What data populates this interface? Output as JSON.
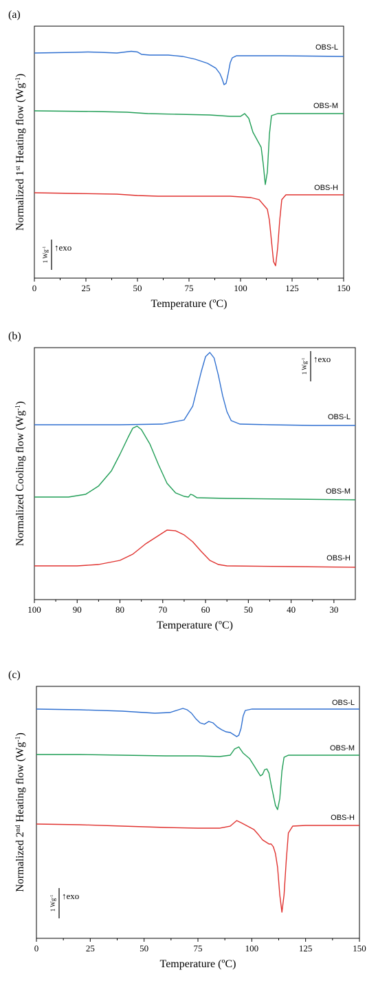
{
  "colors": {
    "OBS-L": "#2e6fd0",
    "OBS-M": "#1f9d55",
    "OBS-H": "#e0312e",
    "axis": "#000000"
  },
  "chart_data": [
    {
      "panel_label": "(a)",
      "type": "line",
      "xlabel": "Temperature (ºC)",
      "ylabel": {
        "before": "Normalized 1",
        "sup": "st",
        "after": " Heating flow (Wg",
        "unit_sup": "-1",
        "close": ")"
      },
      "xlim": [
        0,
        150
      ],
      "xticks": [
        0,
        25,
        50,
        75,
        100,
        125,
        150
      ],
      "x_reversed": false,
      "scale_bar": {
        "label": "1 Wg",
        "label_sup": "-1",
        "arrow_text": "↑exo"
      },
      "series": [
        {
          "name": "OBS-L",
          "points": [
            [
              0,
              77
            ],
            [
              10,
              76.5
            ],
            [
              20,
              76
            ],
            [
              26,
              75.5
            ],
            [
              32,
              76
            ],
            [
              40,
              77
            ],
            [
              47,
              74.5
            ],
            [
              50,
              75.5
            ],
            [
              52,
              79
            ],
            [
              56,
              80
            ],
            [
              65,
              80
            ],
            [
              72,
              82
            ],
            [
              78,
              86
            ],
            [
              84,
              92
            ],
            [
              88,
              99
            ],
            [
              90,
              107
            ],
            [
              91,
              114
            ],
            [
              92,
              123
            ],
            [
              93,
              121
            ],
            [
              94,
              107
            ],
            [
              95,
              91
            ],
            [
              96,
              84
            ],
            [
              98,
              81
            ],
            [
              105,
              81
            ],
            [
              120,
              81
            ],
            [
              135,
              81.5
            ],
            [
              150,
              82
            ]
          ]
        },
        {
          "name": "OBS-M",
          "points": [
            [
              0,
              161
            ],
            [
              15,
              161.5
            ],
            [
              30,
              162
            ],
            [
              45,
              163
            ],
            [
              55,
              165
            ],
            [
              70,
              166
            ],
            [
              85,
              167
            ],
            [
              95,
              169
            ],
            [
              100,
              169
            ],
            [
              102,
              165
            ],
            [
              104,
              172
            ],
            [
              106,
              192
            ],
            [
              108,
              203
            ],
            [
              110,
              214
            ],
            [
              111,
              238
            ],
            [
              112,
              268
            ],
            [
              113,
              250
            ],
            [
              114,
              195
            ],
            [
              115,
              168
            ],
            [
              118,
              165
            ],
            [
              130,
              165
            ],
            [
              150,
              165
            ]
          ]
        },
        {
          "name": "OBS-H",
          "points": [
            [
              0,
              280
            ],
            [
              20,
              281
            ],
            [
              40,
              282
            ],
            [
              50,
              284
            ],
            [
              60,
              285
            ],
            [
              80,
              285
            ],
            [
              95,
              285
            ],
            [
              105,
              287
            ],
            [
              109,
              290
            ],
            [
              111,
              297
            ],
            [
              113,
              304
            ],
            [
              114,
              320
            ],
            [
              115,
              350
            ],
            [
              116,
              380
            ],
            [
              117,
              386
            ],
            [
              118,
              360
            ],
            [
              119,
              320
            ],
            [
              120,
              290
            ],
            [
              122,
              283
            ],
            [
              130,
              283
            ],
            [
              150,
              283
            ]
          ]
        }
      ]
    },
    {
      "panel_label": "(b)",
      "type": "line",
      "xlabel": "Temperature (ºC)",
      "ylabel": {
        "before": "Normalized Cooling flow (Wg",
        "sup": "",
        "after": "",
        "unit_sup": "-1",
        "close": ")"
      },
      "xlim": [
        100,
        25
      ],
      "xticks": [
        100,
        90,
        80,
        70,
        60,
        50,
        40,
        30
      ],
      "x_reversed": true,
      "scale_bar": {
        "label": "1 Wg",
        "label_sup": "-1",
        "arrow_text": "↑exo"
      },
      "series": [
        {
          "name": "OBS-L",
          "points": [
            [
              100,
              617
            ],
            [
              80,
              617
            ],
            [
              70,
              616
            ],
            [
              65,
              610
            ],
            [
              63,
              590
            ],
            [
              62,
              565
            ],
            [
              61,
              540
            ],
            [
              60,
              518
            ],
            [
              59,
              512
            ],
            [
              58,
              520
            ],
            [
              57,
              545
            ],
            [
              56,
              575
            ],
            [
              55,
              598
            ],
            [
              54,
              611
            ],
            [
              52,
              616
            ],
            [
              45,
              617
            ],
            [
              35,
              618
            ],
            [
              25,
              618
            ]
          ]
        },
        {
          "name": "OBS-M",
          "points": [
            [
              100,
              722
            ],
            [
              92,
              722
            ],
            [
              88,
              718
            ],
            [
              85,
              706
            ],
            [
              82,
              684
            ],
            [
              80,
              660
            ],
            [
              78,
              634
            ],
            [
              77,
              622
            ],
            [
              76,
              619
            ],
            [
              75,
              624
            ],
            [
              73,
              645
            ],
            [
              71,
              675
            ],
            [
              69,
              702
            ],
            [
              67,
              716
            ],
            [
              65,
              721
            ],
            [
              64,
              722
            ],
            [
              63.5,
              718
            ],
            [
              63,
              719
            ],
            [
              62,
              723
            ],
            [
              55,
              724
            ],
            [
              40,
              725
            ],
            [
              25,
              726
            ]
          ]
        },
        {
          "name": "OBS-H",
          "points": [
            [
              100,
              822
            ],
            [
              90,
              822
            ],
            [
              85,
              820
            ],
            [
              80,
              814
            ],
            [
              77,
              805
            ],
            [
              74,
              790
            ],
            [
              71,
              778
            ],
            [
              69,
              770
            ],
            [
              67,
              771
            ],
            [
              65,
              777
            ],
            [
              63,
              787
            ],
            [
              61,
              801
            ],
            [
              59,
              814
            ],
            [
              57,
              820
            ],
            [
              55,
              822
            ],
            [
              40,
              823
            ],
            [
              25,
              824
            ]
          ]
        }
      ]
    },
    {
      "panel_label": "(c)",
      "type": "line",
      "xlabel": "Temperature (ºC)",
      "ylabel": {
        "before": "Normalized 2",
        "sup": "nd",
        "after": " Heating flow (Wg",
        "unit_sup": "-1",
        "close": ")"
      },
      "xlim": [
        0,
        150
      ],
      "xticks": [
        0,
        25,
        50,
        75,
        100,
        125,
        150
      ],
      "x_reversed": false,
      "scale_bar": {
        "label": "1 Wg",
        "label_sup": "-1",
        "arrow_text": "↑exo"
      },
      "series": [
        {
          "name": "OBS-L",
          "points": [
            [
              0,
              1030
            ],
            [
              20,
              1031
            ],
            [
              40,
              1033
            ],
            [
              55,
              1036
            ],
            [
              62,
              1035
            ],
            [
              65,
              1032
            ],
            [
              68,
              1029
            ],
            [
              70,
              1031
            ],
            [
              72,
              1036
            ],
            [
              74,
              1044
            ],
            [
              76,
              1050
            ],
            [
              78,
              1052
            ],
            [
              80,
              1048
            ],
            [
              82,
              1050
            ],
            [
              84,
              1056
            ],
            [
              86,
              1060
            ],
            [
              88,
              1063
            ],
            [
              90,
              1064
            ],
            [
              92,
              1068
            ],
            [
              93,
              1070
            ],
            [
              94,
              1068
            ],
            [
              95,
              1058
            ],
            [
              96,
              1040
            ],
            [
              97,
              1032
            ],
            [
              100,
              1030
            ],
            [
              120,
              1030
            ],
            [
              150,
              1030
            ]
          ]
        },
        {
          "name": "OBS-M",
          "points": [
            [
              0,
              1096
            ],
            [
              20,
              1096
            ],
            [
              40,
              1097
            ],
            [
              60,
              1098
            ],
            [
              75,
              1098
            ],
            [
              85,
              1099
            ],
            [
              90,
              1097
            ],
            [
              92,
              1088
            ],
            [
              94,
              1085
            ],
            [
              96,
              1094
            ],
            [
              99,
              1102
            ],
            [
              101,
              1112
            ],
            [
              103,
              1122
            ],
            [
              104,
              1127
            ],
            [
              105,
              1125
            ],
            [
              106,
              1118
            ],
            [
              107,
              1117
            ],
            [
              108,
              1123
            ],
            [
              109,
              1140
            ],
            [
              110,
              1155
            ],
            [
              111,
              1170
            ],
            [
              112,
              1176
            ],
            [
              113,
              1160
            ],
            [
              114,
              1120
            ],
            [
              115,
              1100
            ],
            [
              117,
              1097
            ],
            [
              130,
              1097
            ],
            [
              150,
              1097
            ]
          ]
        },
        {
          "name": "OBS-H",
          "points": [
            [
              0,
              1197
            ],
            [
              20,
              1198
            ],
            [
              40,
              1200
            ],
            [
              60,
              1202
            ],
            [
              75,
              1203
            ],
            [
              85,
              1203
            ],
            [
              90,
              1200
            ],
            [
              93,
              1192
            ],
            [
              95,
              1195
            ],
            [
              98,
              1200
            ],
            [
              101,
              1205
            ],
            [
              103,
              1212
            ],
            [
              105,
              1220
            ],
            [
              107,
              1224
            ],
            [
              108,
              1226
            ],
            [
              109,
              1226
            ],
            [
              110,
              1230
            ],
            [
              111,
              1240
            ],
            [
              112,
              1260
            ],
            [
              113,
              1300
            ],
            [
              114,
              1325
            ],
            [
              115,
              1300
            ],
            [
              116,
              1250
            ],
            [
              117,
              1210
            ],
            [
              119,
              1200
            ],
            [
              125,
              1199
            ],
            [
              150,
              1199
            ]
          ]
        }
      ]
    }
  ]
}
